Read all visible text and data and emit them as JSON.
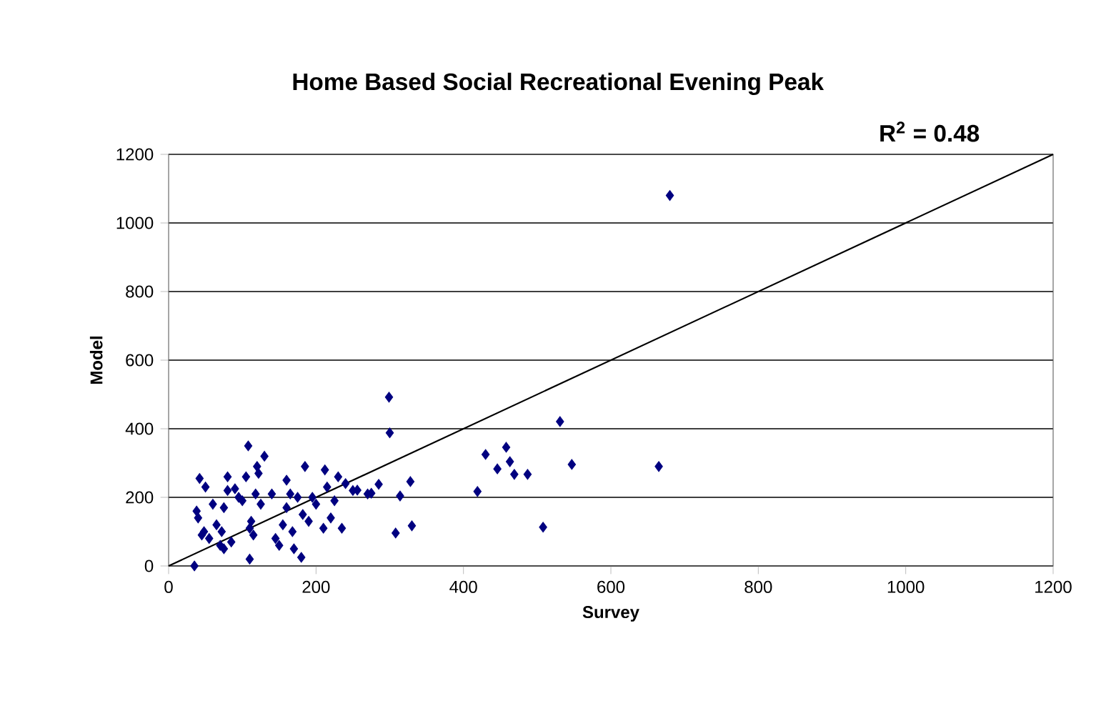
{
  "chart_data": {
    "type": "scatter",
    "title": "Home Based Social Recreational Evening Peak",
    "xlabel": "Survey",
    "ylabel": "Model",
    "annotations": [
      "R$^{2}$ = 0.48"
    ],
    "xlim": [
      0,
      1200
    ],
    "ylim": [
      0,
      1200
    ],
    "xticks": [
      0,
      200,
      400,
      600,
      800,
      1000,
      1200
    ],
    "yticks": [
      0,
      200,
      400,
      600,
      800,
      1000,
      1200
    ],
    "grid": "y",
    "marker": "diamond",
    "series": [
      {
        "color": "#000080",
        "x": [
          35,
          38,
          40,
          42,
          45,
          50,
          48,
          55,
          60,
          65,
          70,
          72,
          75,
          75,
          80,
          80,
          85,
          90,
          95,
          100,
          105,
          108,
          110,
          110,
          112,
          115,
          118,
          120,
          122,
          125,
          130,
          140,
          145,
          150,
          155,
          160,
          160,
          165,
          168,
          170,
          175,
          180,
          182,
          185,
          190,
          195,
          200,
          210,
          212,
          215,
          220,
          225,
          230,
          235,
          240,
          250,
          256,
          270,
          275,
          285,
          299,
          300,
          308,
          314,
          328,
          330,
          419,
          430,
          446,
          458,
          463,
          469,
          487,
          508,
          531,
          547,
          665,
          680
        ],
        "values": [
          0,
          160,
          140,
          255,
          90,
          230,
          100,
          80,
          180,
          120,
          60,
          100,
          170,
          50,
          260,
          220,
          70,
          225,
          200,
          190,
          260,
          350,
          20,
          110,
          130,
          90,
          210,
          290,
          270,
          180,
          320,
          210,
          80,
          60,
          120,
          250,
          170,
          210,
          100,
          50,
          200,
          25,
          150,
          290,
          130,
          200,
          180,
          110,
          280,
          230,
          140,
          190,
          260,
          110,
          240,
          220,
          221,
          210,
          212,
          238,
          492,
          388,
          96,
          204,
          246,
          117,
          217,
          325,
          283,
          346,
          304,
          267,
          267,
          113,
          421,
          296,
          290,
          1080
        ]
      },
      {
        "type": "line",
        "color": "#000000",
        "marker": "none",
        "x": [
          0,
          1200
        ],
        "values": [
          0,
          1200
        ]
      }
    ]
  }
}
